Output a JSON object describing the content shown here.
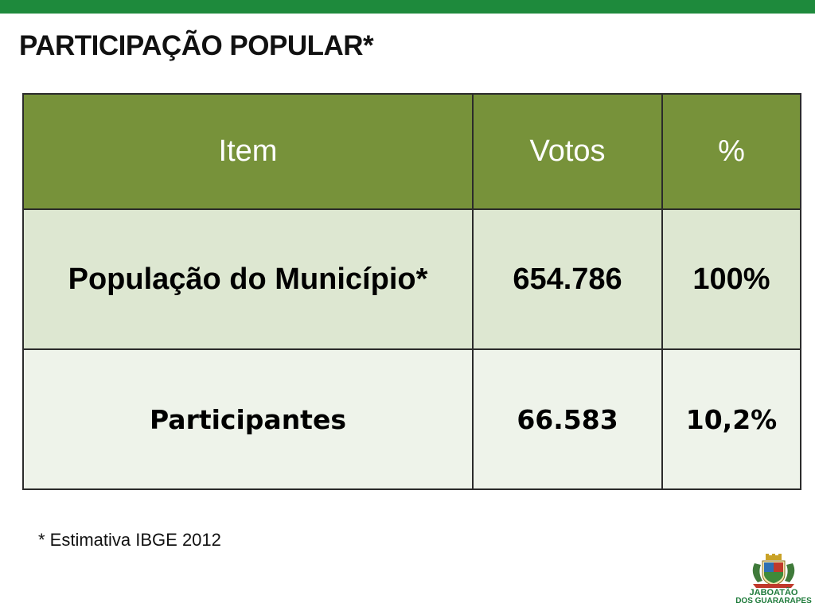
{
  "slide": {
    "title": "PARTICIPAÇÃO POPULAR*",
    "footnote": "* Estimativa IBGE 2012"
  },
  "table": {
    "headers": [
      "Item",
      "Votos",
      "%"
    ],
    "rows": [
      {
        "item": "População do Município*",
        "votos": "654.786",
        "percent": "100%"
      },
      {
        "item": "Participantes",
        "votos": "66.583",
        "percent": "10,2%"
      }
    ]
  },
  "logo": {
    "line1": "JABOATÃO",
    "line2": "DOS GUARARAPES"
  },
  "colors": {
    "top_bar": "#1e8a3c",
    "header_bg": "#77923a",
    "row1_bg": "#dde7d1",
    "row2_bg": "#eef3ea",
    "logo_text": "#1e7a3a"
  }
}
